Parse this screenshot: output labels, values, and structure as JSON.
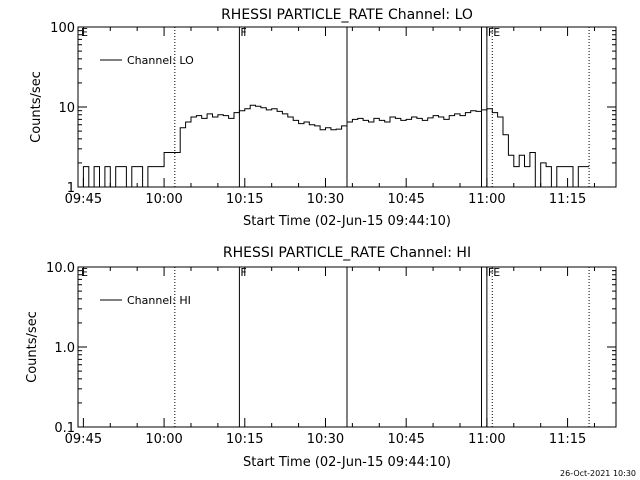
{
  "chart_data": [
    {
      "type": "line",
      "title": "RHESSI PARTICLE_RATE Channel: LO",
      "xlabel": "Start Time (02-Jun-15 09:44:10)",
      "ylabel": "Counts/sec",
      "yscale": "log",
      "ylim": [
        1,
        100
      ],
      "y_ticks": [
        1,
        10,
        100
      ],
      "y_tick_labels": [
        "1",
        "10",
        "100"
      ],
      "xlim": [
        "09:44",
        "11:24"
      ],
      "x_ticks": [
        "09:45",
        "10:00",
        "10:15",
        "10:30",
        "10:45",
        "11:00",
        "11:15"
      ],
      "legend": {
        "placement": "top-left",
        "entries": [
          "Channel: LO"
        ]
      },
      "markers": [
        {
          "time": "10:02",
          "style": "dotted",
          "label": ""
        },
        {
          "time": "10:14",
          "style": "solid",
          "label": "F"
        },
        {
          "time": "10:34",
          "style": "solid",
          "label": ""
        },
        {
          "time": "10:59",
          "style": "solid",
          "label": ""
        },
        {
          "time": "11:00",
          "style": "solid",
          "label": "F"
        },
        {
          "time": "11:01",
          "style": "dotted",
          "label": "E"
        },
        {
          "time": "11:19",
          "style": "dotted",
          "label": ""
        }
      ],
      "corner_labels": [
        "E"
      ],
      "series": [
        {
          "name": "Channel: LO",
          "x": [
            "09:44",
            "09:45",
            "09:46",
            "09:47",
            "09:48",
            "09:49",
            "09:50",
            "09:51",
            "09:52",
            "09:53",
            "09:54",
            "09:55",
            "09:56",
            "09:57",
            "09:58",
            "09:59",
            "10:00",
            "10:01",
            "10:02",
            "10:03",
            "10:04",
            "10:05",
            "10:06",
            "10:07",
            "10:08",
            "10:09",
            "10:10",
            "10:11",
            "10:12",
            "10:13",
            "10:14",
            "10:15",
            "10:16",
            "10:17",
            "10:18",
            "10:19",
            "10:20",
            "10:21",
            "10:22",
            "10:23",
            "10:24",
            "10:25",
            "10:26",
            "10:27",
            "10:28",
            "10:29",
            "10:30",
            "10:31",
            "10:32",
            "10:33",
            "10:34",
            "10:35",
            "10:36",
            "10:37",
            "10:38",
            "10:39",
            "10:40",
            "10:41",
            "10:42",
            "10:43",
            "10:44",
            "10:45",
            "10:46",
            "10:47",
            "10:48",
            "10:49",
            "10:50",
            "10:51",
            "10:52",
            "10:53",
            "10:54",
            "10:55",
            "10:56",
            "10:57",
            "10:58",
            "10:59",
            "11:00",
            "11:01",
            "11:02",
            "11:03",
            "11:04",
            "11:05",
            "11:06",
            "11:07",
            "11:08",
            "11:09",
            "11:10",
            "11:11",
            "11:12",
            "11:13",
            "11:14",
            "11:15",
            "11:16",
            "11:17",
            "11:18"
          ],
          "values": [
            1.0,
            1.8,
            1.0,
            1.8,
            1.0,
            1.8,
            1.0,
            1.8,
            1.8,
            1.0,
            1.8,
            1.8,
            1.0,
            1.8,
            1.8,
            1.8,
            2.7,
            2.7,
            2.7,
            5.5,
            6.5,
            7.5,
            7.8,
            7.2,
            8.2,
            7.5,
            8.0,
            7.8,
            7.2,
            8.5,
            9.0,
            9.5,
            10.5,
            10.2,
            9.8,
            9.2,
            9.5,
            8.8,
            8.2,
            7.5,
            6.8,
            6.2,
            6.5,
            6.0,
            5.8,
            5.2,
            5.5,
            5.2,
            5.3,
            5.8,
            6.5,
            7.0,
            7.2,
            6.8,
            6.5,
            7.2,
            6.8,
            6.5,
            7.5,
            7.2,
            6.8,
            7.0,
            7.5,
            7.2,
            6.8,
            7.3,
            7.8,
            7.5,
            7.0,
            7.8,
            8.2,
            7.8,
            8.5,
            9.0,
            8.8,
            9.2,
            9.5,
            8.5,
            7.5,
            4.5,
            2.5,
            1.8,
            2.5,
            1.8,
            2.7,
            1.0,
            2.0,
            1.8,
            1.0,
            1.8,
            1.8,
            1.8,
            1.0,
            1.8,
            1.8
          ]
        }
      ]
    },
    {
      "type": "line",
      "title": "RHESSI PARTICLE_RATE Channel: HI",
      "xlabel": "Start Time (02-Jun-15 09:44:10)",
      "ylabel": "Counts/sec",
      "yscale": "log",
      "ylim": [
        0.1,
        10
      ],
      "y_ticks": [
        0.1,
        1,
        10
      ],
      "y_tick_labels": [
        "0.1",
        "1.0",
        "10.0"
      ],
      "xlim": [
        "09:44",
        "11:24"
      ],
      "x_ticks": [
        "09:45",
        "10:00",
        "10:15",
        "10:30",
        "10:45",
        "11:00",
        "11:15"
      ],
      "legend": {
        "placement": "top-left",
        "entries": [
          "Channel: HI"
        ]
      },
      "markers": [
        {
          "time": "10:02",
          "style": "dotted",
          "label": ""
        },
        {
          "time": "10:14",
          "style": "solid",
          "label": "F"
        },
        {
          "time": "10:34",
          "style": "solid",
          "label": ""
        },
        {
          "time": "10:59",
          "style": "solid",
          "label": ""
        },
        {
          "time": "11:00",
          "style": "solid",
          "label": "F"
        },
        {
          "time": "11:01",
          "style": "dotted",
          "label": "E"
        },
        {
          "time": "11:19",
          "style": "dotted",
          "label": ""
        }
      ],
      "corner_labels": [
        "E"
      ],
      "series": [
        {
          "name": "Channel: HI",
          "x": [],
          "values": []
        }
      ]
    }
  ],
  "footer": {
    "timestamp": "26-Oct-2021 10:30"
  }
}
